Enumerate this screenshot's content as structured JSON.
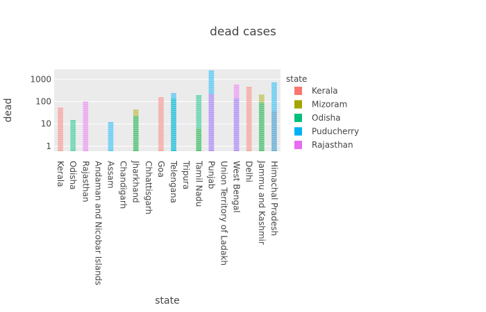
{
  "chart_data": {
    "type": "bar",
    "title": "dead cases",
    "xlabel": "state",
    "ylabel": "dead",
    "yscale": "log",
    "ylim": [
      0.6,
      2800
    ],
    "yticks": [
      1,
      10,
      100,
      1000
    ],
    "ytick_labels": [
      "1",
      "10",
      "100",
      "1000"
    ],
    "grid": true,
    "legend": {
      "title": "state",
      "placement": "right",
      "entries": [
        "Kerala",
        "Mizoram",
        "Odisha",
        "Puducherry",
        "Rajasthan"
      ]
    },
    "categories": [
      "Kerala",
      "Odisha",
      "Rajasthan",
      "Andaman and Nicobar Islands",
      "Assam",
      "Chandigarh",
      "Jharkhand",
      "Chhattisgarh",
      "Goa",
      "Telengana",
      "Tripura",
      "Tamil Nadu",
      "Punjab",
      "Union Territory of Ladakh",
      "West Bengal",
      "Delhi",
      "Jammu and Kashmir",
      "Himachal Pradesh"
    ],
    "series": [
      {
        "name": "Kerala",
        "color": "#F8766D",
        "values": [
          55,
          0,
          0,
          0,
          0,
          0,
          0,
          0,
          160,
          0,
          0,
          0,
          0,
          0,
          0,
          470,
          0,
          38
        ]
      },
      {
        "name": "Mizoram",
        "color": "#A3A500",
        "values": [
          0,
          0,
          0,
          0,
          0,
          0,
          45,
          0,
          0,
          0,
          0,
          6,
          0,
          0,
          0,
          0,
          210,
          0
        ]
      },
      {
        "name": "Odisha",
        "color": "#00BF7D",
        "values": [
          0,
          15,
          0,
          0,
          0,
          0,
          22,
          0,
          0,
          140,
          0,
          200,
          0,
          0,
          0,
          0,
          90,
          0
        ]
      },
      {
        "name": "Puducherry",
        "color": "#00B0F6",
        "values": [
          0,
          0,
          0,
          0,
          12,
          0,
          0,
          0,
          0,
          240,
          0,
          0,
          2500,
          0,
          140,
          0,
          0,
          750
        ]
      },
      {
        "name": "Rajasthan",
        "color": "#E76BF3",
        "values": [
          0,
          0,
          100,
          0,
          0,
          0,
          0,
          0,
          0,
          0,
          0,
          0,
          220,
          0,
          600,
          0,
          0,
          0
        ]
      }
    ]
  }
}
